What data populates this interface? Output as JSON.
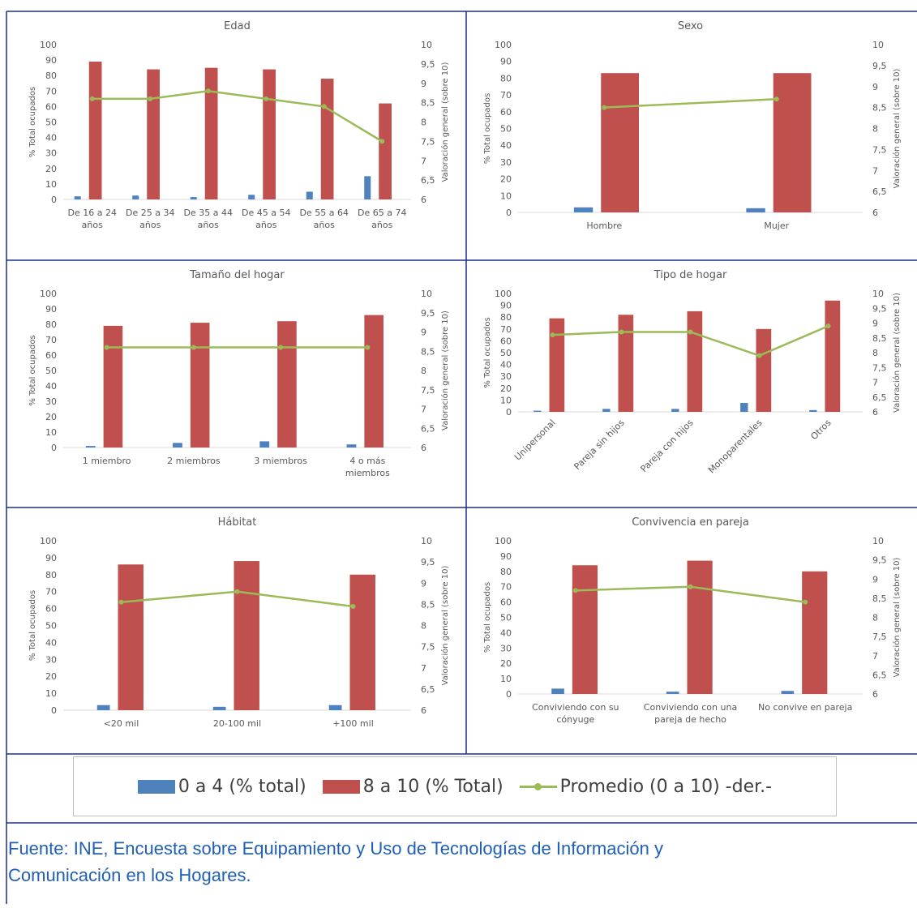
{
  "colors": {
    "series_low": "#4f81bd",
    "series_high": "#c0504d",
    "series_avg": "#9bbb59",
    "frame": "#1f2d8f",
    "axis_text": "#595959"
  },
  "chart_data": [
    {
      "type": "bar",
      "title": "Edad",
      "ylabel": "% Total ocupados",
      "y2label": "Valoración general (sobre 10)",
      "ylim": [
        0,
        100
      ],
      "y2lim": [
        6,
        10
      ],
      "yticks": [
        "0",
        "10",
        "20",
        "30",
        "40",
        "50",
        "60",
        "70",
        "80",
        "90",
        "100"
      ],
      "y2ticks": [
        "6",
        "6,5",
        "7",
        "7,5",
        "8",
        "8,5",
        "9",
        "9,5",
        "10"
      ],
      "categories": [
        [
          "De 16 a 24",
          "años"
        ],
        [
          "De 25 a 34",
          "años"
        ],
        [
          "De 35 a 44",
          "años"
        ],
        [
          "De 45 a 54",
          "años"
        ],
        [
          "De 55 a 64",
          "años"
        ],
        [
          "De 65 a 74",
          "años"
        ]
      ],
      "series": [
        {
          "name": "0 a 4 (% total)",
          "values": [
            2,
            2.5,
            1.5,
            3,
            5,
            15
          ]
        },
        {
          "name": "8 a 10 (% Total)",
          "values": [
            89,
            84,
            85,
            84,
            78,
            62
          ]
        },
        {
          "name": "Promedio (0 a 10) -der.-",
          "values": [
            8.6,
            8.6,
            8.8,
            8.6,
            8.4,
            7.5
          ]
        }
      ]
    },
    {
      "type": "bar",
      "title": "Sexo",
      "ylabel": "% Total ocupados",
      "y2label": "Valoración general (sobre 10)",
      "ylim": [
        0,
        100
      ],
      "y2lim": [
        6,
        10
      ],
      "yticks": [
        "0",
        "10",
        "20",
        "30",
        "40",
        "50",
        "60",
        "70",
        "80",
        "90",
        "100"
      ],
      "y2ticks": [
        "6",
        "6,5",
        "7",
        "7,5",
        "8",
        "8,5",
        "9",
        "9,5",
        "10"
      ],
      "categories": [
        [
          "Hombre"
        ],
        [
          "Mujer"
        ]
      ],
      "series": [
        {
          "name": "0 a 4 (% total)",
          "values": [
            3,
            2.5
          ]
        },
        {
          "name": "8 a 10 (% Total)",
          "values": [
            83,
            83
          ]
        },
        {
          "name": "Promedio (0 a 10) -der.-",
          "values": [
            8.5,
            8.7
          ]
        }
      ]
    },
    {
      "type": "bar",
      "title": "Tamaño del hogar",
      "ylabel": "% Total ocupados",
      "y2label": "Valoración general (sobre 10)",
      "ylim": [
        0,
        100
      ],
      "y2lim": [
        6,
        10
      ],
      "yticks": [
        "0",
        "10",
        "20",
        "30",
        "40",
        "50",
        "60",
        "70",
        "80",
        "90",
        "100"
      ],
      "y2ticks": [
        "6",
        "6,5",
        "7",
        "7,5",
        "8",
        "8,5",
        "9",
        "9,5",
        "10"
      ],
      "categories": [
        [
          "1 miembro"
        ],
        [
          "2 miembros"
        ],
        [
          "3 miembros"
        ],
        [
          "4 o más",
          "miembros"
        ]
      ],
      "series": [
        {
          "name": "0 a 4 (% total)",
          "values": [
            1,
            3,
            4,
            2
          ]
        },
        {
          "name": "8 a 10 (% Total)",
          "values": [
            79,
            81,
            82,
            86
          ]
        },
        {
          "name": "Promedio (0 a 10) -der.-",
          "values": [
            8.6,
            8.6,
            8.6,
            8.6
          ]
        }
      ]
    },
    {
      "type": "bar",
      "title": "Tipo de hogar",
      "ylabel": "% Total ocupados",
      "y2label": "Valoración general (sobre 10)",
      "ylim": [
        0,
        100
      ],
      "y2lim": [
        6,
        10
      ],
      "yticks": [
        "0",
        "10",
        "20",
        "30",
        "40",
        "50",
        "60",
        "70",
        "80",
        "90",
        "100"
      ],
      "y2ticks": [
        "6",
        "6,5",
        "7",
        "7,5",
        "8",
        "8,5",
        "9",
        "9,5",
        "10"
      ],
      "categories": [
        [
          "Unipersonal"
        ],
        [
          "Pareja sin hijos"
        ],
        [
          "Pareja con hijos"
        ],
        [
          "Monoparentales"
        ],
        [
          "Otros"
        ]
      ],
      "series": [
        {
          "name": "0 a 4 (% total)",
          "values": [
            1,
            2.5,
            2.5,
            7.5,
            1.5
          ]
        },
        {
          "name": "8 a 10 (% Total)",
          "values": [
            79,
            82,
            85,
            70,
            94
          ]
        },
        {
          "name": "Promedio (0 a 10) -der.-",
          "values": [
            8.6,
            8.7,
            8.7,
            7.9,
            8.9
          ]
        }
      ]
    },
    {
      "type": "bar",
      "title": "Hábitat",
      "ylabel": "% Total ocupados",
      "y2label": "Valoración general (sobre 10)",
      "ylim": [
        0,
        100
      ],
      "y2lim": [
        6,
        10
      ],
      "yticks": [
        "0",
        "10",
        "20",
        "30",
        "40",
        "50",
        "60",
        "70",
        "80",
        "90",
        "100"
      ],
      "y2ticks": [
        "6",
        "6,5",
        "7",
        "7,5",
        "8",
        "8,5",
        "9",
        "9,5",
        "10"
      ],
      "categories": [
        [
          "<20 mil"
        ],
        [
          "20-100 mil"
        ],
        [
          "+100 mil"
        ]
      ],
      "series": [
        {
          "name": "0 a 4 (% total)",
          "values": [
            3,
            2,
            3
          ]
        },
        {
          "name": "8 a 10 (% Total)",
          "values": [
            86,
            88,
            80
          ]
        },
        {
          "name": "Promedio (0 a 10) -der.-",
          "values": [
            8.55,
            8.8,
            8.45
          ]
        }
      ]
    },
    {
      "type": "bar",
      "title": "Convivencia en pareja",
      "ylabel": "% Total ocupados",
      "y2label": "Valoración general (sobre 10)",
      "ylim": [
        0,
        100
      ],
      "y2lim": [
        6,
        10
      ],
      "yticks": [
        "0",
        "10",
        "20",
        "30",
        "40",
        "50",
        "60",
        "70",
        "80",
        "90",
        "100"
      ],
      "y2ticks": [
        "6",
        "6,5",
        "7",
        "7,5",
        "8",
        "8,5",
        "9",
        "9,5",
        "10"
      ],
      "categories": [
        [
          "Conviviendo con su",
          "cónyuge"
        ],
        [
          "Conviviendo con una",
          "pareja de hecho"
        ],
        [
          "No convive en pareja"
        ]
      ],
      "series": [
        {
          "name": "0 a 4 (% total)",
          "values": [
            3.5,
            1.5,
            2
          ]
        },
        {
          "name": "8 a 10 (% Total)",
          "values": [
            84,
            87,
            80
          ]
        },
        {
          "name": "Promedio (0 a 10) -der.-",
          "values": [
            8.7,
            8.8,
            8.4
          ]
        }
      ]
    }
  ],
  "legend": {
    "items": [
      {
        "label": "0 a 4 (% total)"
      },
      {
        "label": "8 a 10 (% Total)"
      },
      {
        "label": "Promedio (0 a 10) -der.-"
      }
    ]
  },
  "source": {
    "line1": "Fuente: INE, Encuesta sobre Equipamiento y Uso de Tecnologías de Información y",
    "line2": "Comunicación en los Hogares."
  }
}
